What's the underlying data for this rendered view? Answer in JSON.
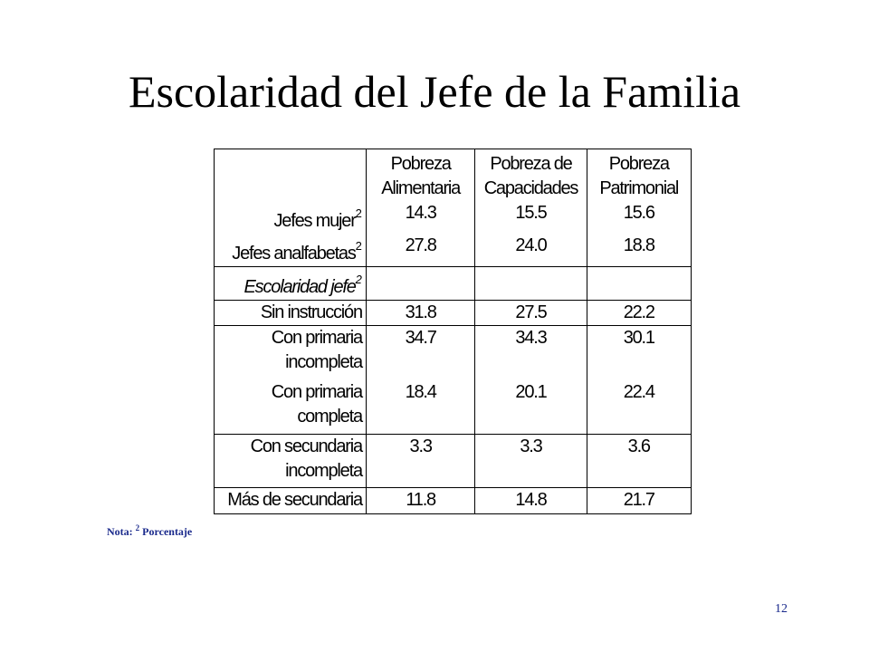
{
  "title": "Escolaridad del Jefe de la Familia",
  "table": {
    "headers": {
      "col1_line1": "Pobreza",
      "col1_line2": "Alimentaria",
      "col2_line1": "Pobreza de",
      "col2_line2": "Capacidades",
      "col3_line1": "Pobreza",
      "col3_line2": "Patrimonial"
    },
    "rows": {
      "jefes_mujer": {
        "label": "Jefes mujer",
        "sup": "2",
        "v1": "14.3",
        "v2": "15.5",
        "v3": "15.6"
      },
      "jefes_analfabetas": {
        "label": "Jefes analfabetas",
        "sup": "2",
        "v1": "27.8",
        "v2": "24.0",
        "v3": "18.8"
      },
      "escolaridad": {
        "label": "Escolaridad jefe",
        "sup": "2"
      },
      "sin_instruccion": {
        "label": "Sin instrucción",
        "v1": "31.8",
        "v2": "27.5",
        "v3": "22.2"
      },
      "primaria_incompleta": {
        "label_line1": "Con primaria",
        "label_line2": "incompleta",
        "v1": "34.7",
        "v2": "34.3",
        "v3": "30.1"
      },
      "primaria_completa": {
        "label_line1": "Con primaria",
        "label_line2": "completa",
        "v1": "18.4",
        "v2": "20.1",
        "v3": "22.4"
      },
      "secundaria_incompleta": {
        "label_line1": "Con secundaria",
        "label_line2": "incompleta",
        "v1": "3.3",
        "v2": "3.3",
        "v3": "3.6"
      },
      "mas_secundaria": {
        "label": "Más de secundaria",
        "v1": "11.8",
        "v2": "14.8",
        "v3": "21.7"
      }
    }
  },
  "note": {
    "prefix": "Nota:",
    "sup": "2",
    "text": "Porcentaje"
  },
  "page_number": "12"
}
